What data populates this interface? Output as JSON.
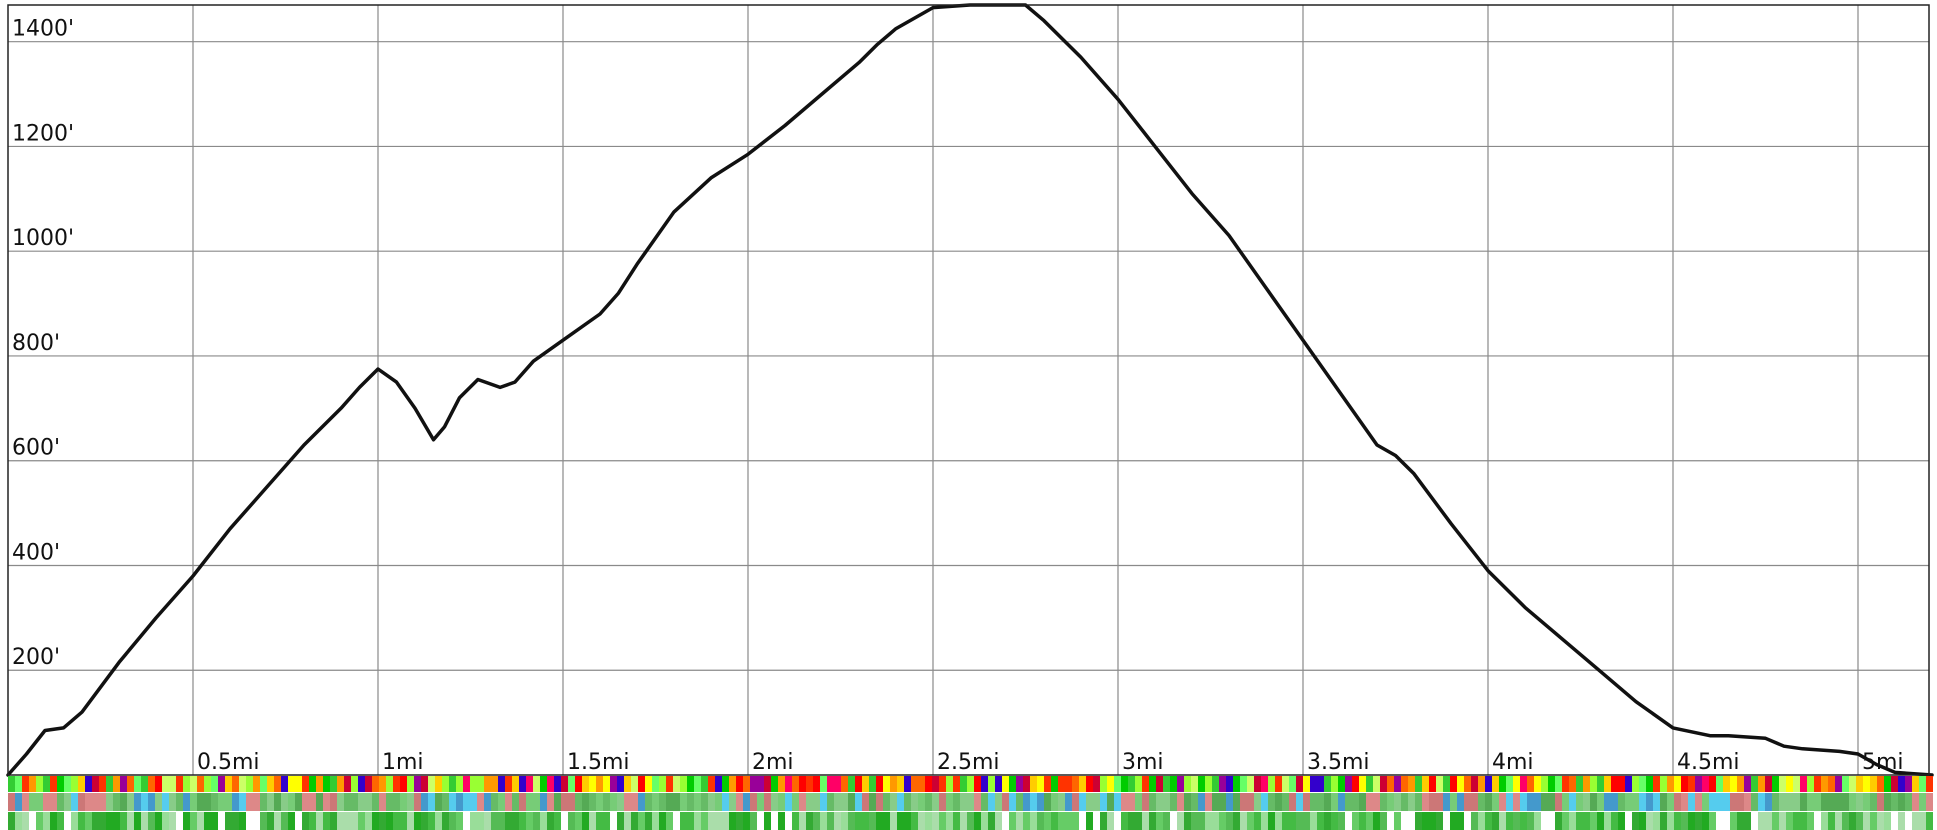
{
  "chart_data": {
    "type": "line",
    "title": "",
    "xlabel": "",
    "ylabel": "",
    "x_unit": "mi",
    "y_unit": "ft",
    "xlim": [
      0,
      5.2
    ],
    "ylim": [
      0,
      1470
    ],
    "x_ticks": [
      {
        "value": 0.5,
        "label": "0.5mi"
      },
      {
        "value": 1.0,
        "label": "1mi"
      },
      {
        "value": 1.5,
        "label": "1.5mi"
      },
      {
        "value": 2.0,
        "label": "2mi"
      },
      {
        "value": 2.5,
        "label": "2.5mi"
      },
      {
        "value": 3.0,
        "label": "3mi"
      },
      {
        "value": 3.5,
        "label": "3.5mi"
      },
      {
        "value": 4.0,
        "label": "4mi"
      },
      {
        "value": 4.5,
        "label": "4.5mi"
      },
      {
        "value": 5.0,
        "label": "5mi"
      }
    ],
    "y_ticks": [
      {
        "value": 200,
        "label": "200'"
      },
      {
        "value": 400,
        "label": "400'"
      },
      {
        "value": 600,
        "label": "600'"
      },
      {
        "value": 800,
        "label": "800'"
      },
      {
        "value": 1000,
        "label": "1000'"
      },
      {
        "value": 1200,
        "label": "1200'"
      },
      {
        "value": 1400,
        "label": "1400'"
      }
    ],
    "grid": true,
    "series": [
      {
        "color": "#111111",
        "x": [
          0.0,
          0.05,
          0.1,
          0.15,
          0.2,
          0.3,
          0.4,
          0.5,
          0.6,
          0.7,
          0.8,
          0.9,
          0.95,
          1.0,
          1.05,
          1.1,
          1.15,
          1.18,
          1.22,
          1.27,
          1.33,
          1.37,
          1.42,
          1.5,
          1.6,
          1.65,
          1.7,
          1.8,
          1.9,
          2.0,
          2.1,
          2.2,
          2.3,
          2.35,
          2.4,
          2.5,
          2.6,
          2.7,
          2.75,
          2.8,
          2.9,
          3.0,
          3.1,
          3.2,
          3.3,
          3.4,
          3.5,
          3.6,
          3.7,
          3.75,
          3.8,
          3.9,
          4.0,
          4.1,
          4.2,
          4.3,
          4.4,
          4.5,
          4.6,
          4.65,
          4.75,
          4.8,
          4.85,
          4.95,
          5.0,
          5.05,
          5.1,
          5.2
        ],
        "y": [
          0,
          40,
          85,
          90,
          120,
          215,
          300,
          380,
          470,
          550,
          630,
          700,
          740,
          775,
          750,
          700,
          640,
          665,
          720,
          755,
          740,
          750,
          790,
          830,
          880,
          920,
          975,
          1075,
          1140,
          1185,
          1240,
          1300,
          1360,
          1395,
          1425,
          1465,
          1470,
          1470,
          1470,
          1440,
          1370,
          1290,
          1200,
          1110,
          1030,
          930,
          830,
          730,
          630,
          610,
          575,
          480,
          390,
          320,
          260,
          200,
          140,
          90,
          75,
          75,
          70,
          55,
          50,
          45,
          40,
          20,
          5,
          0
        ]
      }
    ]
  }
}
